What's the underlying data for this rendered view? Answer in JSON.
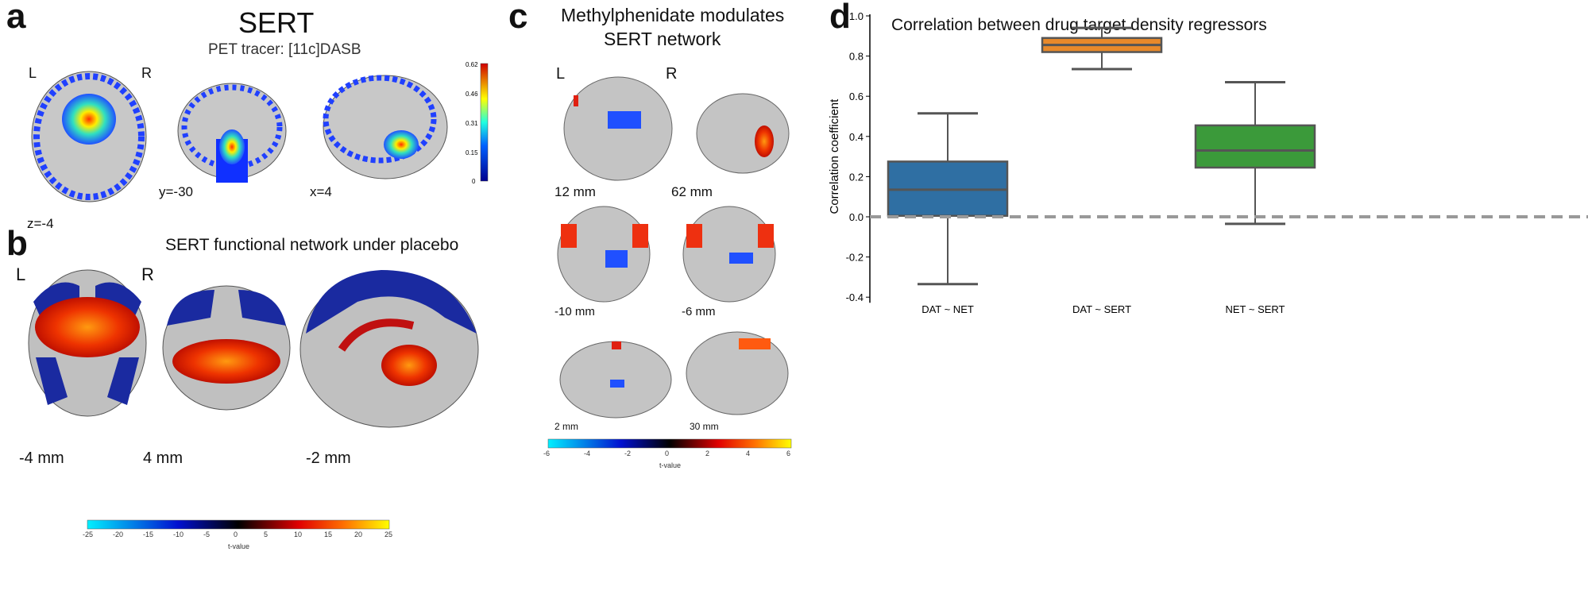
{
  "panel_a": {
    "label": "a",
    "title": "SERT",
    "subtitle": "PET tracer: [11c]DASB",
    "left": "L",
    "right": "R",
    "slices": [
      "z=-4",
      "y=-30",
      "x=4"
    ],
    "colorbar_ticks": [
      "0.62",
      "0.46",
      "0.31",
      "0.15",
      "0"
    ]
  },
  "panel_b": {
    "label": "b",
    "title": "SERT functional network under placebo",
    "left": "L",
    "right": "R",
    "slices": [
      "-4 mm",
      "4 mm",
      "-2 mm"
    ],
    "colorbar_ticks": [
      "-25",
      "-20",
      "-15",
      "-10",
      "-5",
      "0",
      "5",
      "10",
      "15",
      "20",
      "25"
    ],
    "colorbar_label": "t-value"
  },
  "panel_c": {
    "label": "c",
    "title_line1": "Methylphenidate modulates",
    "title_line2": "SERT network",
    "left": "L",
    "right": "R",
    "slices": [
      "12 mm",
      "62 mm",
      "-10 mm",
      "-6 mm",
      "2 mm",
      "30 mm"
    ],
    "colorbar_ticks": [
      "-6",
      "-4",
      "-2",
      "0",
      "2",
      "4",
      "6"
    ],
    "colorbar_label": "t-value"
  },
  "panel_d": {
    "label": "d"
  },
  "chart_data": {
    "type": "box",
    "title": "Correlation between drug target density regressors",
    "xlabel": "",
    "ylabel": "Correlation coefficient",
    "ylim": [
      -0.42,
      1.0
    ],
    "yticks": [
      "-0.4",
      "-0.2",
      "0.0",
      "0.2",
      "0.4",
      "0.6",
      "0.8",
      "1.0"
    ],
    "reference_line": 0.0,
    "categories": [
      "DAT ~ NET",
      "DAT ~ SERT",
      "NET ~ SERT"
    ],
    "boxes": [
      {
        "whisker_low": -0.335,
        "q1": 0.005,
        "median": 0.135,
        "q3": 0.275,
        "whisker_high": 0.515,
        "min_point": -0.38,
        "max_point": 0.52
      },
      {
        "whisker_low": 0.735,
        "q1": 0.82,
        "median": 0.855,
        "q3": 0.89,
        "whisker_high": 0.94,
        "min_point": 0.66,
        "max_point": 0.945
      },
      {
        "whisker_low": -0.035,
        "q1": 0.245,
        "median": 0.33,
        "q3": 0.455,
        "whisker_high": 0.67,
        "min_point": -0.075,
        "max_point": 0.67
      }
    ],
    "colors": [
      "#2f6fa3",
      "#e8892a",
      "#3b9a3a"
    ],
    "grid": false
  }
}
